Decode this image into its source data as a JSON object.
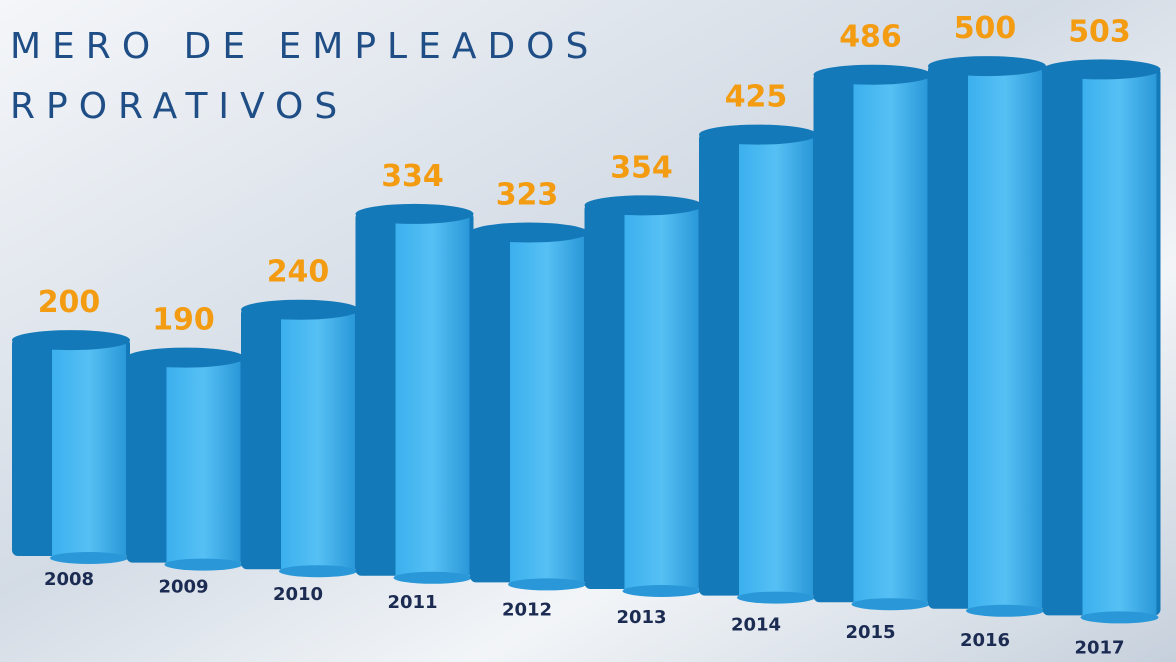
{
  "chart_data": {
    "type": "bar",
    "title": [
      "MERO DE EMPLEADOS",
      "RPORATIVOS"
    ],
    "categories": [
      "2008",
      "2009",
      "2010",
      "2011",
      "2012",
      "2013",
      "2014",
      "2015",
      "2016",
      "2017"
    ],
    "values": [
      200,
      190,
      240,
      334,
      323,
      354,
      425,
      486,
      500,
      503
    ],
    "color": "#2f9fe0",
    "shade_color": "#1479b8",
    "label_color": "#f39c12",
    "category_color": "#1c2b52"
  }
}
